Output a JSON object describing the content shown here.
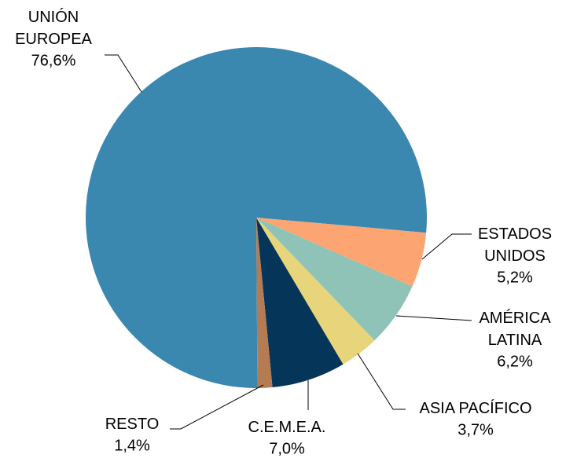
{
  "chart_data": {
    "type": "pie",
    "categories": [
      "UNIÓN EUROPEA",
      "ESTADOS UNIDOS",
      "AMÉRICA LATINA",
      "ASIA PACÍFICO",
      "C.E.M.E.A.",
      "RESTO"
    ],
    "values": [
      76.6,
      5.2,
      6.2,
      3.7,
      7.0,
      1.4
    ],
    "value_labels": [
      "76,6%",
      "5,2%",
      "6,2%",
      "3,7%",
      "7,0%",
      "1,4%"
    ],
    "colors": [
      "#3a87b0",
      "#fca572",
      "#8fc3b7",
      "#e8d47a",
      "#06355a",
      "#b57c53"
    ]
  }
}
